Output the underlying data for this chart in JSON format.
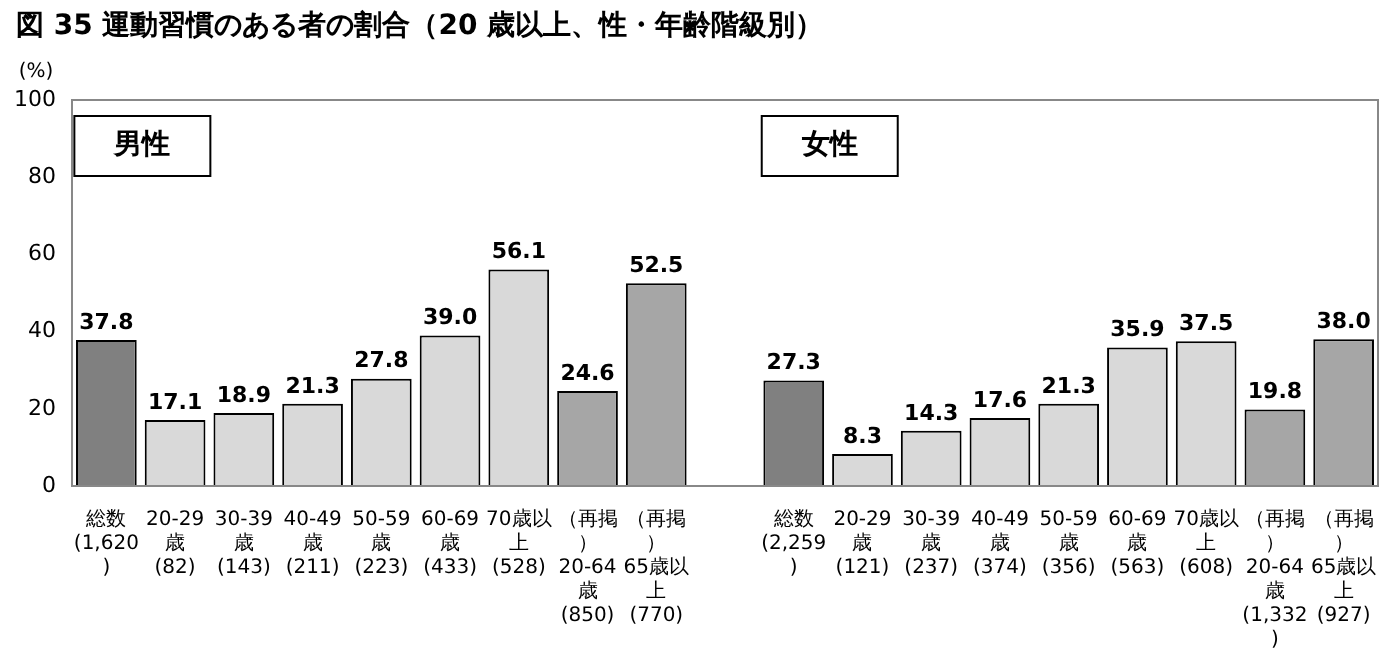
{
  "chart_data": {
    "type": "bar",
    "title": "図 35  運動習慣のある者の割合（20 歳以上、性・年齢階級別）",
    "ylabel": "(%)",
    "categories": [
      "総数\n(1,620)",
      "20-29歳\n(82)",
      "30-39歳\n(143)",
      "40-49歳\n(211)",
      "50-59歳\n(223)",
      "60-69歳\n(433)",
      "70歳以上\n(528)",
      "（再掲）\n20-64歳\n(850)",
      "（再掲）\n65歳以上\n(770)",
      null,
      "総数\n(2,259)",
      "20-29歳\n(121)",
      "30-39歳\n(237)",
      "40-49歳\n(374)",
      "50-59歳\n(356)",
      "60-69歳\n(563)",
      "70歳以上\n(608)",
      "（再掲）\n20-64歳\n(1,332)",
      "（再掲）\n65歳以上\n(927)"
    ],
    "values": [
      37.8,
      17.1,
      18.9,
      21.3,
      27.8,
      39.0,
      56.1,
      24.6,
      52.5,
      null,
      27.3,
      8.3,
      14.3,
      17.6,
      21.3,
      35.9,
      37.5,
      19.8,
      38.0
    ],
    "value_labels": [
      "37.8",
      "17.1",
      "18.9",
      "21.3",
      "27.8",
      "39.0",
      "56.1",
      "24.6",
      "52.5",
      null,
      "27.3",
      "8.3",
      "14.3",
      "17.6",
      "21.3",
      "35.9",
      "37.5",
      "19.8",
      "38.0"
    ],
    "colors": [
      "#808080",
      "#d9d9d9",
      "#d9d9d9",
      "#d9d9d9",
      "#d9d9d9",
      "#d9d9d9",
      "#d9d9d9",
      "#a6a6a6",
      "#a6a6a6",
      null,
      "#808080",
      "#d9d9d9",
      "#d9d9d9",
      "#d9d9d9",
      "#d9d9d9",
      "#d9d9d9",
      "#d9d9d9",
      "#a6a6a6",
      "#a6a6a6"
    ],
    "ylim": [
      0,
      100
    ],
    "yticks": [
      0,
      20,
      40,
      60,
      80,
      100
    ],
    "grid": false,
    "legend": false,
    "annotations": [
      "男性",
      "女性"
    ]
  }
}
